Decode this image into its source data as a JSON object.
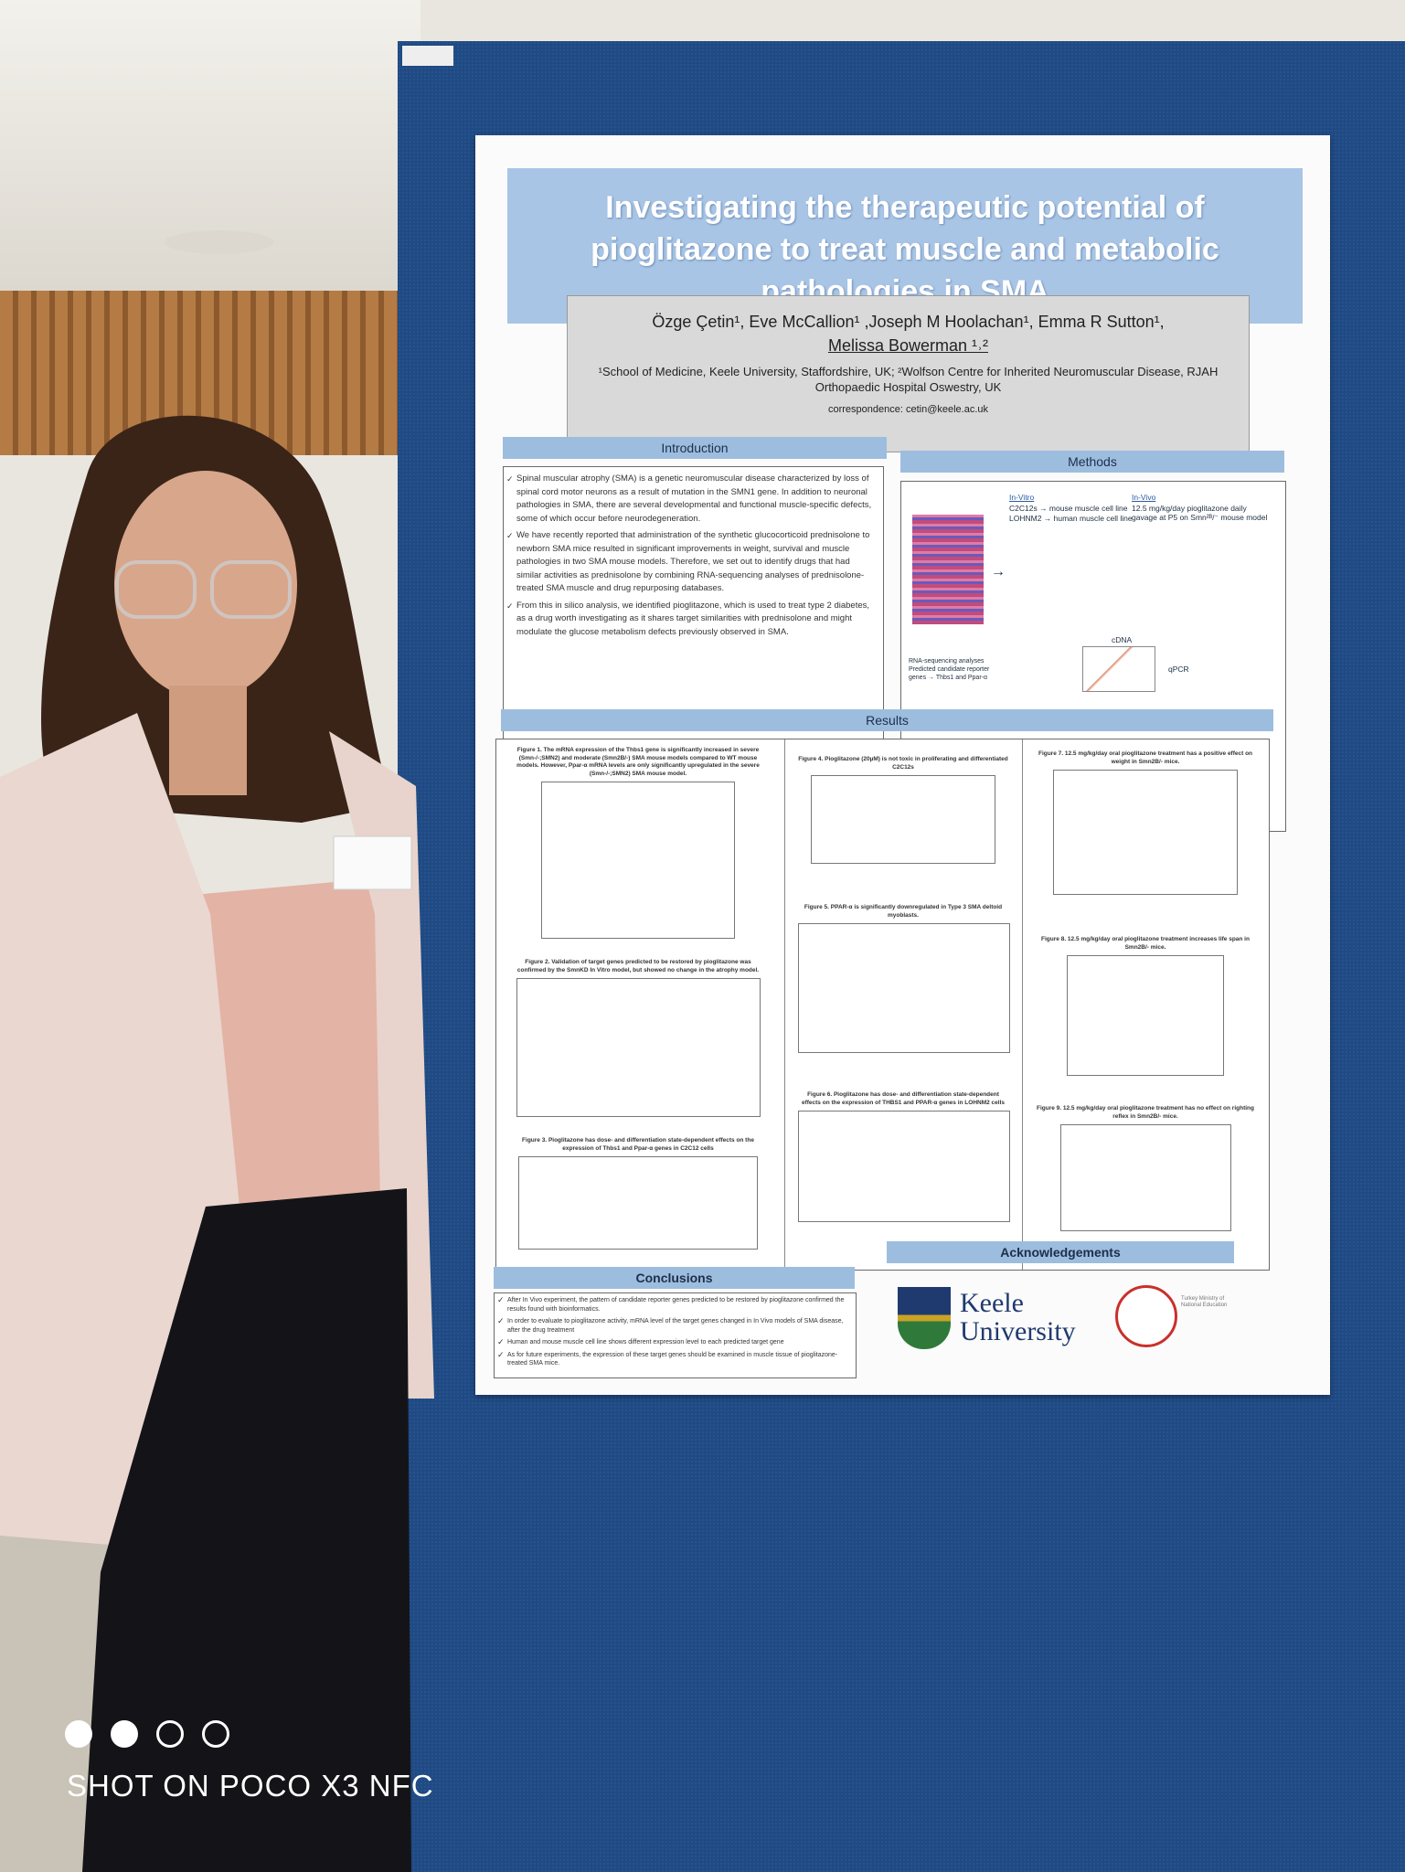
{
  "poster": {
    "title": "Investigating the therapeutic potential of pioglitazone to treat muscle and metabolic pathologies in SMA",
    "authors": "Özge Çetin¹, Eve McCallion¹ ,Joseph M Hoolachan¹, Emma R Sutton¹,",
    "last_author": "Melissa Bowerman ¹˒²",
    "affiliations": "¹School of Medicine, Keele University, Staffordshire, UK; ²Wolfson Centre for Inherited Neuromuscular Disease, RJAH Orthopaedic Hospital Oswestry, UK",
    "correspondence": "correspondence: cetin@keele.ac.uk",
    "introduction": {
      "heading": "Introduction",
      "bullets": [
        "Spinal muscular atrophy (SMA) is a genetic neuromuscular disease characterized by loss of spinal cord motor neurons as a result of mutation in the SMN1 gene. In addition to neuronal pathologies in SMA, there are several developmental and functional muscle-specific defects, some of which occur before neurodegeneration.",
        "We have recently reported that administration of the synthetic glucocorticoid prednisolone to newborn SMA mice resulted in significant improvements in weight, survival and muscle pathologies in two SMA mouse models. Therefore, we set out to identify drugs that had similar activities as prednisolone by combining RNA-sequencing analyses of prednisolone-treated SMA muscle and drug repurposing databases.",
        "From this in silico analysis, we identified pioglitazone, which is used to treat type 2 diabetes, as a drug worth investigating as it shares target similarities with prednisolone and might modulate the glucose metabolism defects previously observed in SMA."
      ]
    },
    "methods": {
      "heading": "Methods",
      "in_vitro": "In-Vitro",
      "in_vitro_items": [
        "C2C12s → mouse muscle cell line",
        "LOHNM2 → human muscle cell line"
      ],
      "in_vivo": "In-Vivo",
      "in_vivo_items": [
        "12.5 mg/kg/day pioglitazone daily gavage at P5 on Smn²ᴮ/⁻ mouse model"
      ],
      "rna_note": "RNA-sequencing analyses Predicted candidate reporter genes → Thbs1 and Ppar-α",
      "cdna": "cDNA",
      "qpcr": "qPCR"
    },
    "results": {
      "heading": "Results",
      "figures": [
        "Figure 1. The mRNA expression of the Thbs1 gene is significantly increased in severe (Smn-/-;SMN2) and moderate (Smn2B/-) SMA mouse models compared to WT mouse models. However, Ppar-α mRNA levels are only significantly upregulated in the severe (Smn-/-;SMN2) SMA mouse model.",
        "Figure 2. Validation of target genes predicted to be restored by pioglitazone was confirmed by the SmnKD In Vitro model, but showed no change in the atrophy model.",
        "Figure 3. Pioglitazone has dose- and differentiation state-dependent effects on the expression of Thbs1 and Ppar-α genes in C2C12 cells",
        "Figure 4. Pioglitazone (20µM) is not toxic in proliferating and differentiated C2C12s",
        "Figure 5. PPAR-α is significantly downregulated in Type 3 SMA deltoid myoblasts.",
        "Figure 6. Pioglitazone has dose- and differentiation state-dependent effects on the expression of THBS1 and PPAR-α genes in LOHNM2 cells",
        "Figure 7. 12.5 mg/kg/day oral pioglitazone treatment has a positive effect on weight in Smn2B/- mice.",
        "Figure 8. 12.5 mg/kg/day oral pioglitazone treatment increases life span in Smn2B/- mice.",
        "Figure 9. 12.5 mg/kg/day oral pioglitazone treatment has no effect on righting reflex in Smn2B/- mice."
      ]
    },
    "conclusions": {
      "heading": "Conclusions",
      "bullets": [
        "After In Vivo experiment, the pattern of candidate reporter genes predicted to be restored by pioglitazone confirmed the results found with bioinformatics.",
        "In order to evaluate to pioglitazone activity, mRNA level of the target genes changed in In Vivo models of SMA disease, after the drug treatment",
        "Human and mouse muscle cell line shows different expression level to each predicted target gene",
        "As for future experiments, the expression of these target genes should be examined in muscle tissue of pioglitazone-treated SMA mice."
      ]
    },
    "acknowledgements": {
      "heading": "Acknowledgements",
      "university": "Keele University",
      "ministry": "Turkey Ministry of National Education"
    }
  },
  "watermark": "SHOT ON POCO X3 NFC"
}
